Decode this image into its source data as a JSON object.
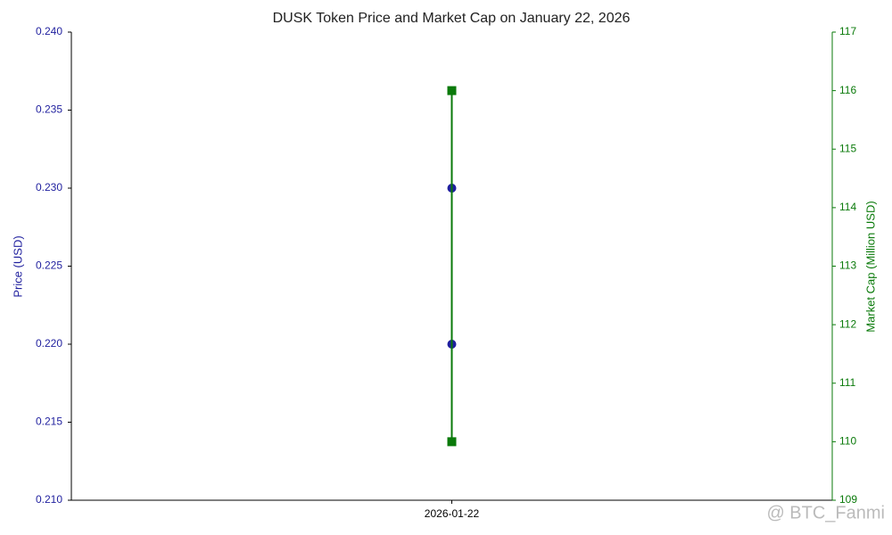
{
  "chart_data": {
    "type": "line",
    "title": "DUSK Token Price and Market Cap on January 22, 2026",
    "x": [
      "2026-01-22",
      "2026-01-22"
    ],
    "ylabel": "Price (USD)",
    "y2label": "Market Cap (Million USD)",
    "ylim": [
      0.21,
      0.24
    ],
    "yticks": [
      {
        "value": 0.21,
        "label": "0.210"
      },
      0.215,
      {
        "value": 0.22,
        "label": "0.220"
      },
      0.225,
      {
        "value": 0.23,
        "label": "0.230"
      },
      0.235,
      {
        "value": 0.24,
        "label": "0.240"
      }
    ],
    "y2lim": [
      109,
      117
    ],
    "y2ticks": [
      109,
      110,
      111,
      112,
      113,
      114,
      115,
      116,
      117
    ],
    "series": [
      {
        "name": "Price (USD)",
        "color": "#1f1f9e",
        "marker": "circle",
        "values": [
          0.23,
          0.22
        ]
      },
      {
        "name": "Market Cap (Million USD)",
        "color": "#0a7a0a",
        "marker": "square",
        "axis": "y2",
        "values": [
          110,
          116
        ]
      }
    ],
    "watermark": "@ BTC_Fanmi"
  }
}
